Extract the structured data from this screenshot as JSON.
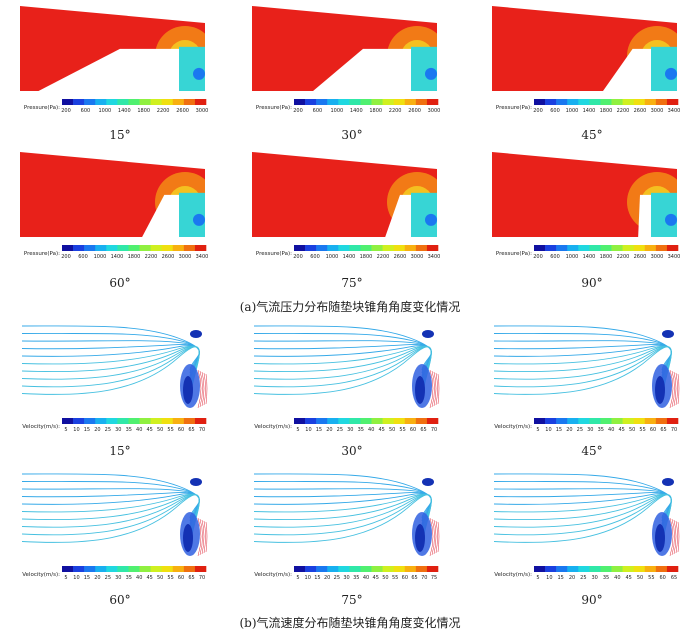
{
  "colors": {
    "high_pressure": "#e8211a",
    "mid_pressure": "#f27a16",
    "low_region": "#37d5d5",
    "streamline": "#35a9e8",
    "vortex": "#1432b4",
    "scale": [
      "#1010a0",
      "#1a40e0",
      "#1a78f0",
      "#18b0f0",
      "#20d8e0",
      "#30e8a8",
      "#50f070",
      "#90f040",
      "#d0f020",
      "#f0e010",
      "#f8b010",
      "#f07010",
      "#e02010"
    ]
  },
  "pressure": {
    "caption": "(a)气流压力分布随垫块锥角角度变化情况",
    "panels": [
      {
        "angle": "15°",
        "ramp_start": 0.1,
        "ramp_end": 0.54,
        "ramp_height": 0.62,
        "scale_label": "Pressure(Pa):",
        "ticks": [
          "200",
          "600",
          "1000",
          "1400",
          "1800",
          "2200",
          "2600",
          "3000"
        ]
      },
      {
        "angle": "30°",
        "ramp_start": 0.33,
        "ramp_end": 0.6,
        "ramp_height": 0.62,
        "scale_label": "Pressure(Pa):",
        "ticks": [
          "200",
          "600",
          "1000",
          "1400",
          "1800",
          "2200",
          "2600",
          "3000"
        ]
      },
      {
        "angle": "45°",
        "ramp_start": 0.6,
        "ramp_end": 0.76,
        "ramp_height": 0.62,
        "scale_label": "Pressure(Pa):",
        "ticks": [
          "200",
          "600",
          "1000",
          "1400",
          "1800",
          "2200",
          "2600",
          "3000",
          "3400"
        ]
      },
      {
        "angle": "60°",
        "ramp_start": 0.66,
        "ramp_end": 0.78,
        "ramp_height": 0.62,
        "scale_label": "Pressure(Pa):",
        "ticks": [
          "200",
          "600",
          "1000",
          "1400",
          "1800",
          "2200",
          "2600",
          "3000",
          "3400"
        ]
      },
      {
        "angle": "75°",
        "ramp_start": 0.72,
        "ramp_end": 0.8,
        "ramp_height": 0.62,
        "scale_label": "Pressure(Pa):",
        "ticks": [
          "200",
          "600",
          "1000",
          "1400",
          "1800",
          "2200",
          "2600",
          "3000",
          "3400"
        ]
      },
      {
        "angle": "90°",
        "ramp_start": 0.79,
        "ramp_end": 0.8,
        "ramp_height": 0.62,
        "scale_label": "Pressure(Pa):",
        "ticks": [
          "200",
          "600",
          "1000",
          "1400",
          "1800",
          "2200",
          "2600",
          "3000",
          "3400"
        ]
      }
    ]
  },
  "velocity": {
    "caption": "(b)气流速度分布随垫块锥角角度变化情况",
    "panels": [
      {
        "angle": "15°",
        "scale_label": "Velocity(m/s):",
        "ticks": [
          "5",
          "10",
          "15",
          "20",
          "25",
          "30",
          "35",
          "40",
          "45",
          "50",
          "55",
          "60",
          "65",
          "70"
        ]
      },
      {
        "angle": "30°",
        "scale_label": "Velocity(m/s):",
        "ticks": [
          "5",
          "10",
          "15",
          "20",
          "25",
          "30",
          "35",
          "40",
          "45",
          "50",
          "55",
          "60",
          "65",
          "70"
        ]
      },
      {
        "angle": "45°",
        "scale_label": "Velocity(m/s):",
        "ticks": [
          "5",
          "10",
          "15",
          "20",
          "25",
          "30",
          "35",
          "40",
          "45",
          "50",
          "55",
          "60",
          "65",
          "70"
        ]
      },
      {
        "angle": "60°",
        "scale_label": "Velocity(m/s):",
        "ticks": [
          "5",
          "10",
          "15",
          "20",
          "25",
          "30",
          "35",
          "40",
          "45",
          "50",
          "55",
          "60",
          "65",
          "70"
        ]
      },
      {
        "angle": "75°",
        "scale_label": "Velocity(m/s):",
        "ticks": [
          "5",
          "10",
          "15",
          "20",
          "25",
          "30",
          "35",
          "40",
          "45",
          "50",
          "55",
          "60",
          "65",
          "70",
          "75"
        ]
      },
      {
        "angle": "90°",
        "scale_label": "Velocity(m/s):",
        "ticks": [
          "5",
          "10",
          "15",
          "20",
          "25",
          "30",
          "35",
          "40",
          "45",
          "50",
          "55",
          "60",
          "65"
        ]
      }
    ]
  }
}
